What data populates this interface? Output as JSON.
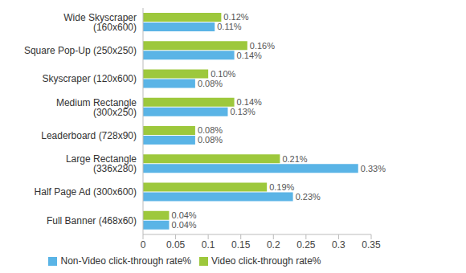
{
  "chart_data": {
    "type": "bar",
    "orientation": "horizontal",
    "categories": [
      "Wide Skyscraper (160x600)",
      "Square Pop-Up (250x250)",
      "Skyscraper (120x600)",
      "Medium Rectangle (300x250)",
      "Leaderboard (728x90)",
      "Large Rectangle (336x280)",
      "Half Page Ad (300x600)",
      "Full Banner (468x60)"
    ],
    "series": [
      {
        "name": "Video click-through rate%",
        "color": "#9dc83c",
        "values": [
          0.12,
          0.16,
          0.1,
          0.14,
          0.08,
          0.21,
          0.19,
          0.04
        ],
        "value_labels": [
          "0.12%",
          "0.16%",
          "0.10%",
          "0.14%",
          "0.08%",
          "0.21%",
          "0.19%",
          "0.04%"
        ]
      },
      {
        "name": "Non-Video click-through rate%",
        "color": "#5ab4e6",
        "values": [
          0.11,
          0.14,
          0.08,
          0.13,
          0.08,
          0.33,
          0.23,
          0.04
        ],
        "value_labels": [
          "0.11%",
          "0.14%",
          "0.08%",
          "0.13%",
          "0.08%",
          "0.33%",
          "0.23%",
          "0.04%"
        ]
      }
    ],
    "xlim": [
      0,
      0.35
    ],
    "xticks": [
      0,
      0.05,
      0.1,
      0.15,
      0.2,
      0.25,
      0.3,
      0.35
    ],
    "grid": false,
    "legend": "bottom",
    "data_labels": true
  }
}
